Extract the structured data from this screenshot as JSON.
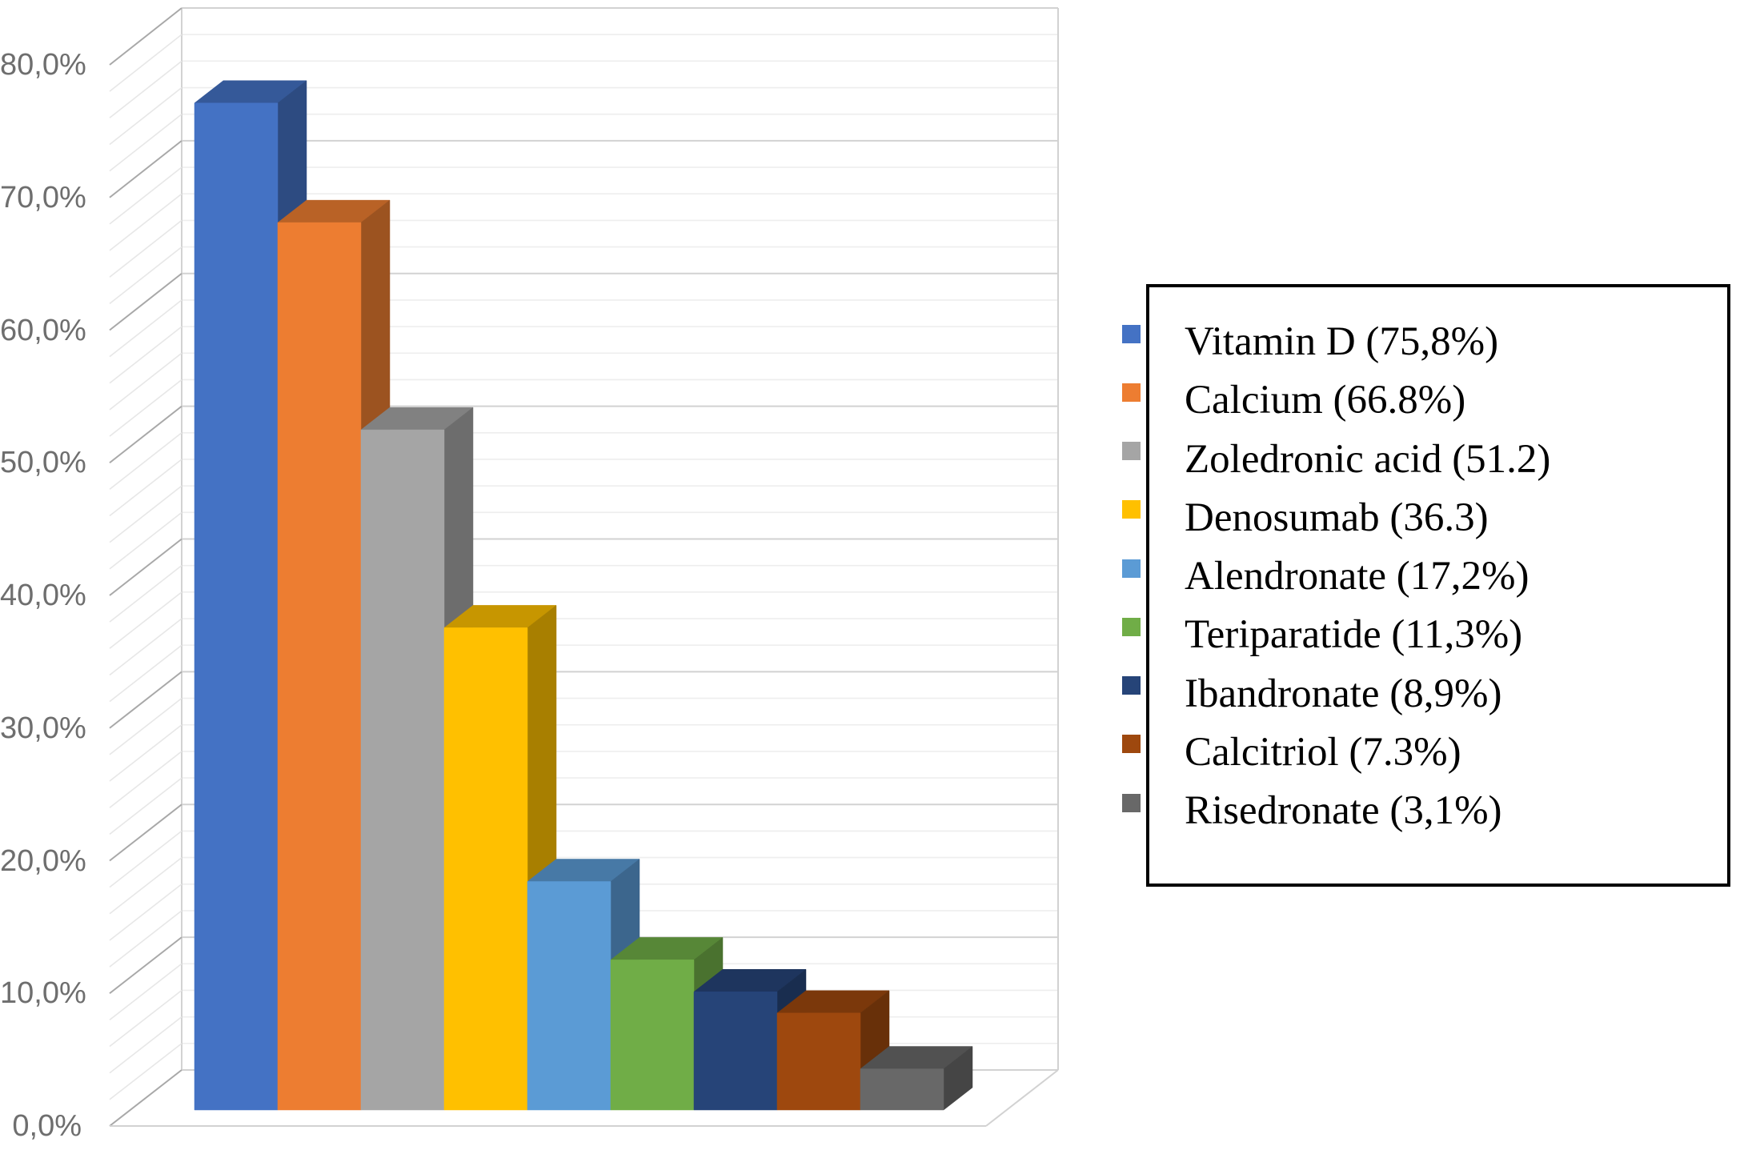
{
  "chart_data": {
    "type": "bar",
    "projection": "3d",
    "title": "",
    "xlabel": "",
    "ylabel": "",
    "categories": [
      "Vitamin D",
      "Calcium",
      "Zoledronic acid",
      "Denosumab",
      "Alendronate",
      "Teriparatide",
      "Ibandronate",
      "Calcitriol",
      "Risedronate"
    ],
    "values": [
      75.8,
      66.8,
      51.2,
      36.3,
      17.2,
      11.3,
      8.9,
      7.3,
      3.1
    ],
    "bar_colors": [
      "#4472C4",
      "#ED7D31",
      "#A5A5A5",
      "#FFC000",
      "#5B9BD5",
      "#70AD47",
      "#264478",
      "#9E480E",
      "#686868"
    ],
    "ylim": [
      0,
      80
    ],
    "y_major_step": 10,
    "y_minor_step": 2,
    "grid": true,
    "y_ticks": [
      "80,0%",
      "70,0%",
      "60,0%",
      "50,0%",
      "40,0%",
      "30,0%",
      "20,0%",
      "10,0%",
      "0,0%"
    ],
    "legend_position": "right"
  },
  "legend": {
    "items": [
      {
        "label": "Vitamin D (75,8%)",
        "color": "#4472C4"
      },
      {
        "label": "Calcium (66.8%)",
        "color": "#ED7D31"
      },
      {
        "label": "Zoledronic acid (51.2)",
        "color": "#A5A5A5"
      },
      {
        "label": "Denosumab (36.3)",
        "color": "#FFC000"
      },
      {
        "label": "Alendronate (17,2%)",
        "color": "#5B9BD5"
      },
      {
        "label": "Teriparatide (11,3%)",
        "color": "#70AD47"
      },
      {
        "label": "Ibandronate (8,9%)",
        "color": "#264478"
      },
      {
        "label": "Calcitriol (7.3%)",
        "color": "#9E480E"
      },
      {
        "label": "Risedronate (3,1%)",
        "color": "#686868"
      }
    ]
  },
  "colors": {
    "axis_label": "#6e6e6e",
    "gridline_minor": "#eeeeee",
    "gridline_major": "#d2d2d2",
    "wall_edge": "#d2d2d2",
    "tick_leader_major": "#a8a8a8",
    "tick_leader_minor": "#e7e7e7",
    "legend_border": "#000000",
    "background": "#ffffff"
  }
}
